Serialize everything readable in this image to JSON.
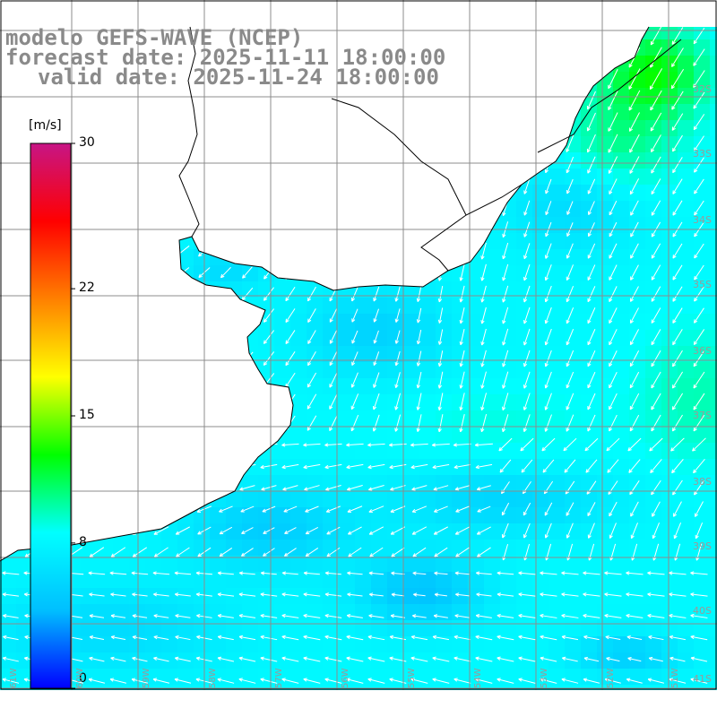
{
  "titles": {
    "line1": "modelo GEFS-WAVE (NCEP)",
    "line2": "forecast date: 2025-11-11 18:00:00",
    "line3": "valid date: 2025-11-24 18:00:00"
  },
  "colorbar": {
    "unit": "[m/s]",
    "min": 0,
    "max": 30,
    "ticks": [
      {
        "label": "30",
        "value": 30
      },
      {
        "label": "22",
        "value": 22
      },
      {
        "label": "15",
        "value": 15
      },
      {
        "label": "8",
        "value": 8
      },
      {
        "label": "0",
        "value": 0
      }
    ],
    "colors": [
      "#0000ff",
      "#00bfff",
      "#00ffff",
      "#00ff00",
      "#ffff00",
      "#ff8000",
      "#ff0000",
      "#c71585"
    ]
  },
  "lat_labels": [
    "32S",
    "33S",
    "34S",
    "35S",
    "36S",
    "37S",
    "38S",
    "39S",
    "40S",
    "41S"
  ],
  "lon_labels": [
    "61W",
    "60W",
    "59W",
    "58W",
    "57W",
    "56W",
    "55W",
    "54W",
    "53W",
    "52W",
    "51W"
  ],
  "colors": {
    "land": "#ffffff",
    "grid": "#8c8c8c",
    "coast": "#000000",
    "arrow": "#ffffff",
    "label_gray": "#8a8a8a"
  }
}
